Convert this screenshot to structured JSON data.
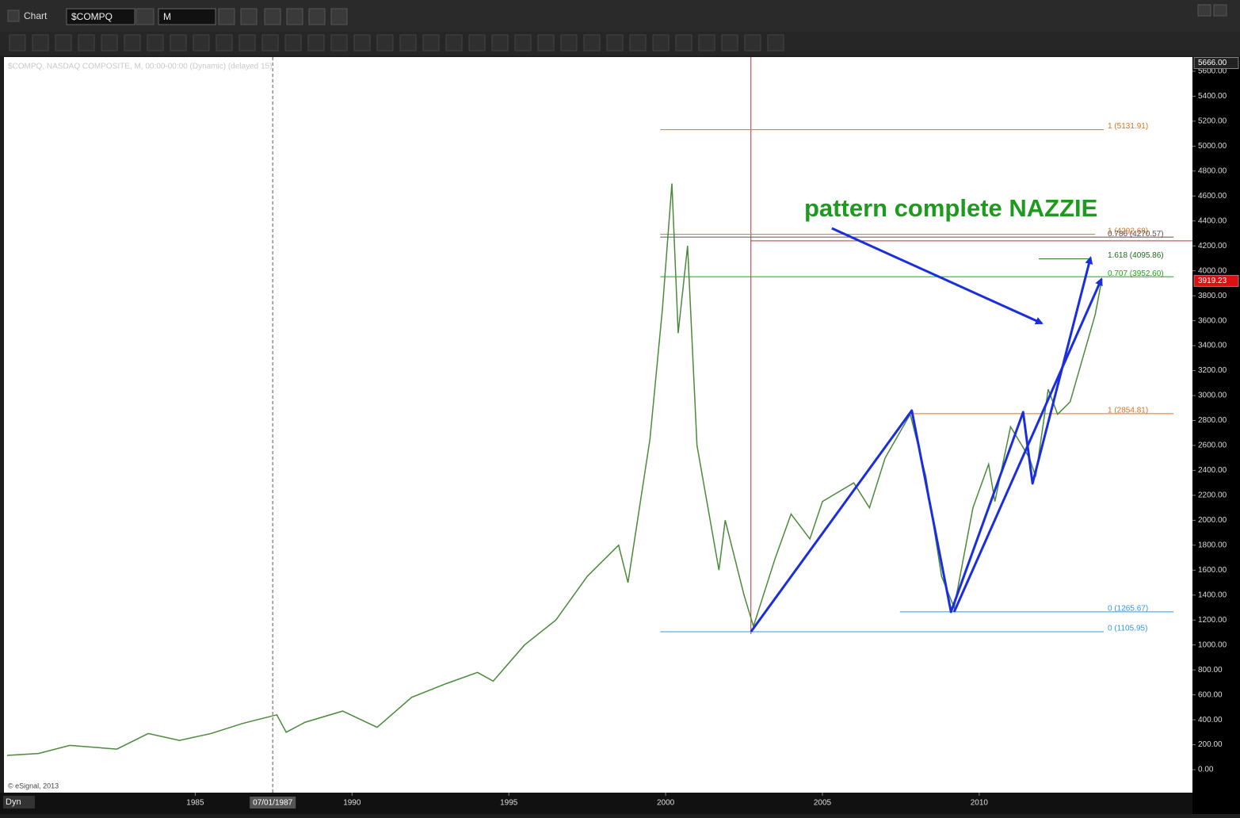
{
  "window": {
    "title": "Chart",
    "symbol": "$COMPQ",
    "interval": "M",
    "mode": "Dyn"
  },
  "chart_data": {
    "type": "line",
    "header": "$COMPQ, NASDAQ COMPOSITE, M, 00:00-00:00 (Dynamic) (delayed 15)",
    "credit": "© eSignal, 2013",
    "annotation": "pattern complete NAZZIE",
    "xlim": [
      1978.9,
      2016.8
    ],
    "ylim": [
      -184,
      5714
    ],
    "xticks": [
      1985,
      1990,
      1995,
      2000,
      2005,
      2010
    ],
    "yticks": [
      {
        "value": 0,
        "label": "0.00"
      },
      {
        "value": 200,
        "label": "200.00"
      },
      {
        "value": 400,
        "label": "400.00"
      },
      {
        "value": 600,
        "label": "600.00"
      },
      {
        "value": 800,
        "label": "800.00"
      },
      {
        "value": 1000,
        "label": "1000.00"
      },
      {
        "value": 1200,
        "label": "1200.00"
      },
      {
        "value": 1400,
        "label": "1400.00"
      },
      {
        "value": 1600,
        "label": "1600.00"
      },
      {
        "value": 1800,
        "label": "1800.00"
      },
      {
        "value": 2000,
        "label": "2000.00"
      },
      {
        "value": 2200,
        "label": "2200.00"
      },
      {
        "value": 2400,
        "label": "2400.00"
      },
      {
        "value": 2600,
        "label": "2600.00"
      },
      {
        "value": 2800,
        "label": "2800.00"
      },
      {
        "value": 3000,
        "label": "3000.00"
      },
      {
        "value": 3200,
        "label": "3200.00"
      },
      {
        "value": 3400,
        "label": "3400.00"
      },
      {
        "value": 3600,
        "label": "3600.00"
      },
      {
        "value": 3800,
        "label": "3800.00"
      },
      {
        "value": 4000,
        "label": "4000.00"
      },
      {
        "value": 4200,
        "label": "4200.00"
      },
      {
        "value": 4400,
        "label": "4400.00"
      },
      {
        "value": 4600,
        "label": "4600.00"
      },
      {
        "value": 4800,
        "label": "4800.00"
      },
      {
        "value": 5000,
        "label": "5000.00"
      },
      {
        "value": 5200,
        "label": "5200.00"
      },
      {
        "value": 5400,
        "label": "5400.00"
      },
      {
        "value": 5600,
        "label": "5600.00"
      }
    ],
    "cursor": {
      "x": 1987.47,
      "label": "07/01/1987"
    },
    "price_tags": [
      {
        "value": 5666,
        "label": "5666.00",
        "color": "#222222"
      },
      {
        "value": 3919.23,
        "label": "3919.23",
        "color": "#e01010"
      }
    ],
    "series": [
      {
        "name": "$COMPQ",
        "color": "#4a8a3a",
        "x": [
          1979.0,
          1980.0,
          1981.0,
          1982.5,
          1983.5,
          1984.5,
          1985.5,
          1986.5,
          1987.6,
          1987.9,
          1988.5,
          1989.7,
          1990.8,
          1991.9,
          1993.0,
          1994.0,
          1994.5,
          1995.5,
          1996.5,
          1997.5,
          1998.5,
          1998.8,
          1999.5,
          1999.9,
          2000.2,
          2000.4,
          2000.7,
          2001.0,
          2001.7,
          2001.9,
          2002.5,
          2002.8,
          2003.5,
          2004.0,
          2004.6,
          2005.0,
          2006.0,
          2006.5,
          2007.0,
          2007.8,
          2008.3,
          2008.8,
          2009.2,
          2009.8,
          2010.3,
          2010.5,
          2011.0,
          2011.6,
          2011.8,
          2012.2,
          2012.5,
          2012.9,
          2013.3,
          2013.7,
          2013.9
        ],
        "values": [
          115,
          130,
          195,
          165,
          290,
          235,
          290,
          370,
          440,
          300,
          380,
          470,
          340,
          580,
          690,
          780,
          710,
          1000,
          1200,
          1550,
          1800,
          1500,
          2650,
          3700,
          4700,
          3500,
          4200,
          2600,
          1600,
          2000,
          1400,
          1150,
          1700,
          2050,
          1850,
          2150,
          2300,
          2100,
          2500,
          2850,
          2350,
          1550,
          1300,
          2100,
          2450,
          2150,
          2750,
          2500,
          2350,
          3050,
          2850,
          2950,
          3300,
          3650,
          3919
        ]
      }
    ],
    "levels": [
      {
        "value": 5131.91,
        "label": "1 (5131.91)",
        "color": "#e07020",
        "x0": 1999.83,
        "x1": 2013.97
      },
      {
        "value": 4292.68,
        "label": "1 (4292.68)",
        "color": "#e07020",
        "x0": 1999.83,
        "x1": 2013.7
      },
      {
        "value": 4270.57,
        "label": "0.786 (4270.57)",
        "color": "#555555",
        "x0": 1999.83,
        "x1": 2016.2
      },
      {
        "value": 4095.86,
        "label": "1.618 (4095.86)",
        "color": "#1e6a1e",
        "x0": 2011.9,
        "x1": 2013.5
      },
      {
        "value": 3952.6,
        "label": "0.707 (3952.60)",
        "color": "#22a022",
        "x0": 1999.83,
        "x1": 2016.2
      },
      {
        "value": 2854.81,
        "label": "1 (2854.81)",
        "color": "#e07020",
        "x0": 2007.8,
        "x1": 2016.2
      },
      {
        "value": 1265.67,
        "label": "0 (1265.67)",
        "color": "#3399dd",
        "x0": 2007.47,
        "x1": 2016.2
      },
      {
        "value": 1105.95,
        "label": "0 (1105.95)",
        "color": "#3399dd",
        "x0": 1999.83,
        "x1": 2013.97
      }
    ],
    "red_lines": {
      "color": "#c03030",
      "x": 2002.72,
      "value": 4240
    },
    "arrows": [
      {
        "color": "#1a2ee0",
        "x": [
          2002.72,
          2007.85,
          2009.1,
          2011.4,
          2011.7,
          2013.55
        ],
        "y": [
          1106,
          2880,
          1265,
          2867,
          2295,
          4106
        ]
      },
      {
        "color": "#1a2ee0",
        "x": [
          2009.2,
          2013.9
        ],
        "y": [
          1265,
          3935
        ]
      },
      {
        "color": "#1a2ee0",
        "x": [
          2005.3,
          2012.0
        ],
        "y": [
          4341,
          3579
        ]
      }
    ]
  }
}
